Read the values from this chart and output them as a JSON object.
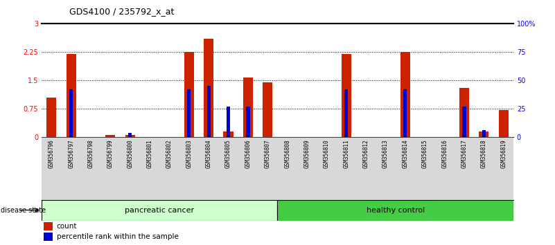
{
  "title": "GDS4100 / 235792_x_at",
  "samples": [
    "GSM356796",
    "GSM356797",
    "GSM356798",
    "GSM356799",
    "GSM356800",
    "GSM356801",
    "GSM356802",
    "GSM356803",
    "GSM356804",
    "GSM356805",
    "GSM356806",
    "GSM356807",
    "GSM356808",
    "GSM356809",
    "GSM356810",
    "GSM356811",
    "GSM356812",
    "GSM356813",
    "GSM356814",
    "GSM356815",
    "GSM356816",
    "GSM356817",
    "GSM356818",
    "GSM356819"
  ],
  "count_values": [
    1.05,
    2.2,
    0.0,
    0.05,
    0.05,
    0.0,
    0.0,
    2.25,
    2.6,
    0.15,
    1.57,
    1.45,
    0.0,
    0.0,
    0.0,
    2.2,
    0.0,
    0.0,
    2.25,
    0.0,
    0.0,
    1.3,
    0.15,
    0.72
  ],
  "percentile_values": [
    0.0,
    42.0,
    0.0,
    0.0,
    4.0,
    0.0,
    0.0,
    42.0,
    45.0,
    27.0,
    27.0,
    0.0,
    0.0,
    0.0,
    0.0,
    42.0,
    0.0,
    0.0,
    42.0,
    0.0,
    0.0,
    27.0,
    6.0,
    0.0
  ],
  "pc_count": 12,
  "hc_count": 12,
  "ylim_left": [
    0,
    3
  ],
  "ylim_right": [
    0,
    100
  ],
  "yticks_left": [
    0,
    0.75,
    1.5,
    2.25,
    3
  ],
  "yticks_right": [
    0,
    25,
    50,
    75,
    100
  ],
  "ytick_labels_left": [
    "0",
    "0.75",
    "1.5",
    "2.25",
    "3"
  ],
  "ytick_labels_right": [
    "0",
    "25",
    "50",
    "75",
    "100%"
  ],
  "bar_color_count": "#CC2200",
  "bar_color_percentile": "#0000CC",
  "group_colors": [
    "#CCFFCC",
    "#44CC44"
  ],
  "group_labels": [
    "pancreatic cancer",
    "healthy control"
  ],
  "legend_count_label": "count",
  "legend_pct_label": "percentile rank within the sample",
  "disease_state_label": "disease state"
}
